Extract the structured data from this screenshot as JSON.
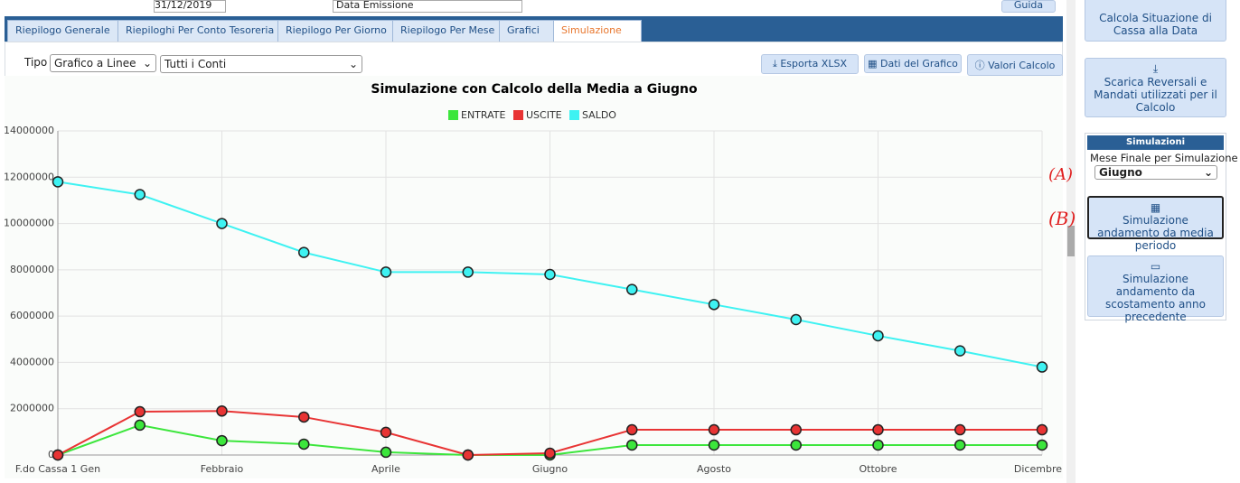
{
  "topbar": {
    "date": "31/12/2019",
    "field": "Data Emissione",
    "help": "Guida"
  },
  "tabs": [
    "Riepilogo Generale",
    "Riepiloghi Per Conto Tesoreria",
    "Riepilogo Per Giorno",
    "Riepilogo Per Mese",
    "Grafici",
    "Simulazione"
  ],
  "toolbar": {
    "type_label": "Tipo",
    "type_select": "Grafico a Linee",
    "account_select": "Tutti i Conti",
    "buttons": [
      "Esporta XLSX",
      "Dati del Grafico",
      "Valori Calcolo"
    ]
  },
  "sidebar": {
    "button1": "Calcola Situazione di Cassa alla Data",
    "button2": "Scarica Reversali e Mandati utilizzati per il Calcolo",
    "panel_title": "Simulazioni",
    "month_label": "Mese Finale per Simulazione",
    "month_select": "Giugno",
    "button3": "Simulazione andamento da media periodo",
    "button4": "Simulazione andamento da scostamento anno precedente"
  },
  "annotations": [
    "(A)",
    "(B)"
  ],
  "chart_data": {
    "type": "line",
    "title": "Simulazione con Calcolo della Media a Giugno",
    "categories": [
      "F.do Cassa 1 Gen",
      null,
      "Febbraio",
      null,
      "Aprile",
      null,
      "Giugno",
      null,
      "Agosto",
      null,
      "Ottobre",
      null,
      "Dicembre"
    ],
    "series": [
      {
        "name": "ENTRATE",
        "color": "#3ce63c",
        "values": [
          0,
          1290000,
          620000,
          470000,
          120000,
          0,
          0,
          430000,
          430000,
          430000,
          430000,
          430000,
          430000
        ]
      },
      {
        "name": "USCITE",
        "color": "#e83434",
        "values": [
          0,
          1870000,
          1900000,
          1640000,
          980000,
          0,
          80000,
          1090000,
          1090000,
          1090000,
          1090000,
          1090000,
          1090000
        ]
      },
      {
        "name": "SALDO",
        "color": "#3ef2f2",
        "values": [
          11800000,
          11250000,
          10000000,
          8750000,
          7900000,
          7900000,
          7800000,
          7150000,
          6500000,
          5850000,
          5150000,
          4500000,
          3800000
        ]
      }
    ],
    "ylim": [
      0,
      14000000
    ],
    "yticks": [
      0,
      2000000,
      4000000,
      6000000,
      8000000,
      10000000,
      12000000,
      14000000
    ],
    "grid": true,
    "legend": "top"
  }
}
